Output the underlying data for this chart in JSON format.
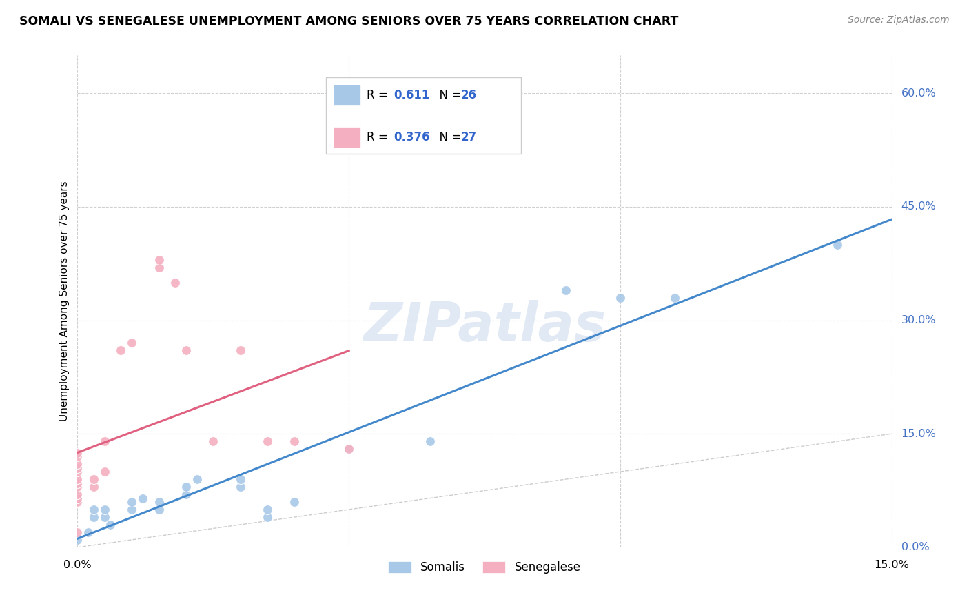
{
  "title": "SOMALI VS SENEGALESE UNEMPLOYMENT AMONG SENIORS OVER 75 YEARS CORRELATION CHART",
  "source": "Source: ZipAtlas.com",
  "ylabel": "Unemployment Among Seniors over 75 years",
  "ylabel_ticks": [
    "0.0%",
    "15.0%",
    "30.0%",
    "45.0%",
    "60.0%"
  ],
  "ytick_vals": [
    0.0,
    0.15,
    0.3,
    0.45,
    0.6
  ],
  "xlim": [
    0.0,
    0.15
  ],
  "ylim": [
    0.0,
    0.65
  ],
  "watermark": "ZIPatlas",
  "somali_color": "#a8c8e8",
  "senegalese_color": "#f4b0c0",
  "somali_line_color": "#4488cc",
  "senegalese_line_color": "#e06080",
  "diagonal_line_color": "#cccccc",
  "somali_points": [
    [
      0.0,
      0.01
    ],
    [
      0.002,
      0.02
    ],
    [
      0.003,
      0.04
    ],
    [
      0.003,
      0.05
    ],
    [
      0.005,
      0.04
    ],
    [
      0.005,
      0.05
    ],
    [
      0.006,
      0.03
    ],
    [
      0.01,
      0.05
    ],
    [
      0.01,
      0.06
    ],
    [
      0.012,
      0.065
    ],
    [
      0.015,
      0.05
    ],
    [
      0.015,
      0.06
    ],
    [
      0.02,
      0.07
    ],
    [
      0.02,
      0.08
    ],
    [
      0.022,
      0.09
    ],
    [
      0.03,
      0.08
    ],
    [
      0.03,
      0.09
    ],
    [
      0.035,
      0.04
    ],
    [
      0.035,
      0.05
    ],
    [
      0.04,
      0.06
    ],
    [
      0.05,
      0.13
    ],
    [
      0.065,
      0.14
    ],
    [
      0.09,
      0.34
    ],
    [
      0.1,
      0.33
    ],
    [
      0.11,
      0.33
    ],
    [
      0.14,
      0.4
    ]
  ],
  "senegalese_points": [
    [
      0.0,
      0.02
    ],
    [
      0.0,
      0.06
    ],
    [
      0.0,
      0.065
    ],
    [
      0.0,
      0.07
    ],
    [
      0.0,
      0.08
    ],
    [
      0.0,
      0.085
    ],
    [
      0.0,
      0.09
    ],
    [
      0.0,
      0.1
    ],
    [
      0.0,
      0.105
    ],
    [
      0.0,
      0.11
    ],
    [
      0.0,
      0.12
    ],
    [
      0.0,
      0.125
    ],
    [
      0.003,
      0.08
    ],
    [
      0.003,
      0.09
    ],
    [
      0.005,
      0.1
    ],
    [
      0.005,
      0.14
    ],
    [
      0.008,
      0.26
    ],
    [
      0.01,
      0.27
    ],
    [
      0.015,
      0.37
    ],
    [
      0.015,
      0.38
    ],
    [
      0.018,
      0.35
    ],
    [
      0.02,
      0.26
    ],
    [
      0.025,
      0.14
    ],
    [
      0.03,
      0.26
    ],
    [
      0.035,
      0.14
    ],
    [
      0.04,
      0.14
    ],
    [
      0.05,
      0.13
    ]
  ],
  "somali_R": 0.611,
  "somali_N": 26,
  "senegalese_R": 0.376,
  "senegalese_N": 27,
  "legend_R1": "0.611",
  "legend_N1": "26",
  "legend_R2": "0.376",
  "legend_N2": "27"
}
